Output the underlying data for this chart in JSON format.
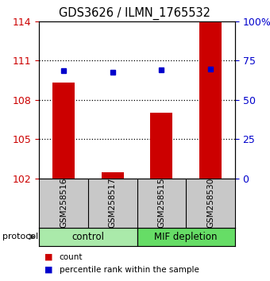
{
  "title": "GDS3626 / ILMN_1765532",
  "samples": [
    "GSM258516",
    "GSM258517",
    "GSM258515",
    "GSM258530"
  ],
  "bar_values": [
    109.3,
    102.5,
    107.0,
    114.0
  ],
  "percentile_values": [
    68.5,
    67.5,
    69.0,
    69.5
  ],
  "groups": [
    {
      "label": "control",
      "start": 0,
      "end": 1,
      "color": "#AAEAAA"
    },
    {
      "label": "MIF depletion",
      "start": 2,
      "end": 3,
      "color": "#66DD66"
    }
  ],
  "ylim_left": [
    102,
    114
  ],
  "yticks_left": [
    102,
    105,
    108,
    111,
    114
  ],
  "ylim_right": [
    0,
    100
  ],
  "yticks_right": [
    0,
    25,
    50,
    75,
    100
  ],
  "ytick_labels_right": [
    "0",
    "25",
    "50",
    "75",
    "100%"
  ],
  "bar_color": "#CC0000",
  "dot_color": "#0000CC",
  "bar_width": 0.45,
  "left_tick_color": "#CC0000",
  "right_tick_color": "#0000CC",
  "background_color": "#ffffff",
  "plot_bg_color": "#ffffff",
  "sample_box_color": "#C8C8C8",
  "grid_color": "#000000",
  "legend_items": [
    {
      "color": "#CC0000",
      "label": "count"
    },
    {
      "color": "#0000CC",
      "label": "percentile rank within the sample"
    }
  ]
}
